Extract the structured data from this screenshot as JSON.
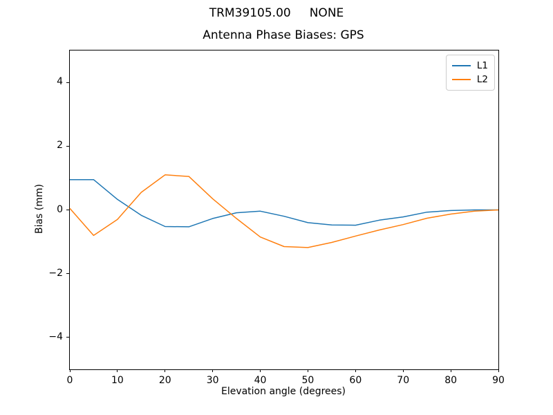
{
  "figure": {
    "suptitle": "TRM39105.00     NONE",
    "axes_title": "Antenna Phase Biases: GPS",
    "xlabel": "Elevation angle (degrees)",
    "ylabel": "Bias (mm)"
  },
  "chart_data": {
    "type": "line",
    "suptitle": "TRM39105.00     NONE",
    "title": "Antenna Phase Biases: GPS",
    "xlabel": "Elevation angle (degrees)",
    "ylabel": "Bias (mm)",
    "xlim": [
      0,
      90
    ],
    "ylim": [
      -5,
      5
    ],
    "xticks": [
      0,
      10,
      20,
      30,
      40,
      50,
      60,
      70,
      80,
      90
    ],
    "yticks": [
      -4,
      -2,
      0,
      2,
      4
    ],
    "grid": false,
    "legend_position": "upper right",
    "x": [
      0,
      5,
      10,
      15,
      20,
      25,
      30,
      35,
      40,
      45,
      50,
      55,
      60,
      65,
      70,
      75,
      80,
      85,
      90
    ],
    "series": [
      {
        "name": "L1",
        "color": "#1f77b4",
        "values": [
          0.95,
          0.95,
          0.33,
          -0.17,
          -0.52,
          -0.53,
          -0.27,
          -0.09,
          -0.04,
          -0.2,
          -0.4,
          -0.47,
          -0.48,
          -0.32,
          -0.22,
          -0.07,
          -0.02,
          0.0,
          0.0
        ]
      },
      {
        "name": "L2",
        "color": "#ff7f0e",
        "values": [
          0.05,
          -0.8,
          -0.3,
          0.55,
          1.1,
          1.05,
          0.35,
          -0.27,
          -0.85,
          -1.15,
          -1.18,
          -1.02,
          -0.82,
          -0.63,
          -0.46,
          -0.26,
          -0.13,
          -0.04,
          0.0
        ]
      }
    ]
  }
}
